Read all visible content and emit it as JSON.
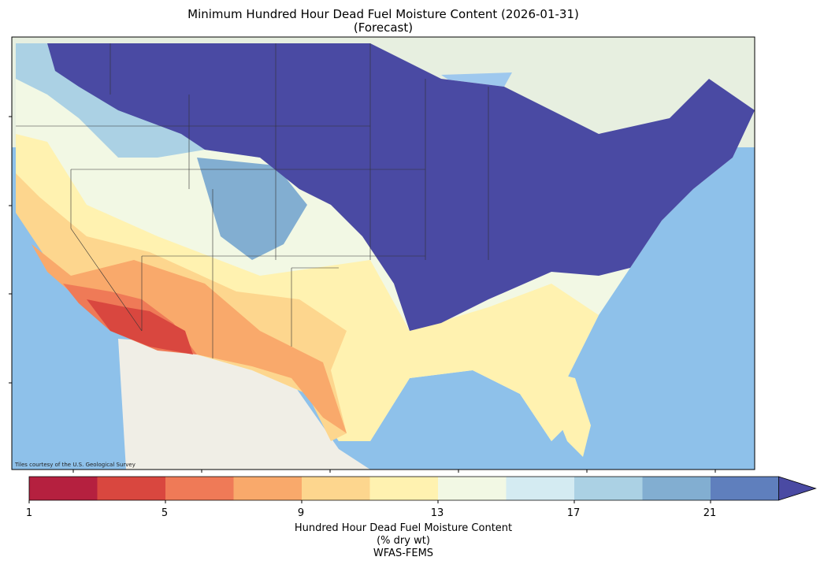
{
  "title": {
    "line1": "Minimum Hundred Hour Dead Fuel Moisture Content (2026-01-31)",
    "line2": "(Forecast)"
  },
  "map": {
    "attribution": "Tiles courtesy of the U.S. Geological Survey",
    "region": "Continental United States"
  },
  "colorbar": {
    "ticks": [
      "1",
      "5",
      "9",
      "13",
      "17",
      "21"
    ],
    "label_line1": "Hundred Hour Dead Fuel Moisture Content",
    "label_line2": "(% dry wt)",
    "label_line3": "WFAS-FEMS",
    "colors": [
      "#b5203f",
      "#d9473f",
      "#ef7a57",
      "#f9a96b",
      "#fdd68e",
      "#fff2b0",
      "#f2f8e4",
      "#d4ebf2",
      "#abd1e4",
      "#82aed1",
      "#5f7fbd",
      "#4a4aa3"
    ],
    "extend": "max"
  }
}
